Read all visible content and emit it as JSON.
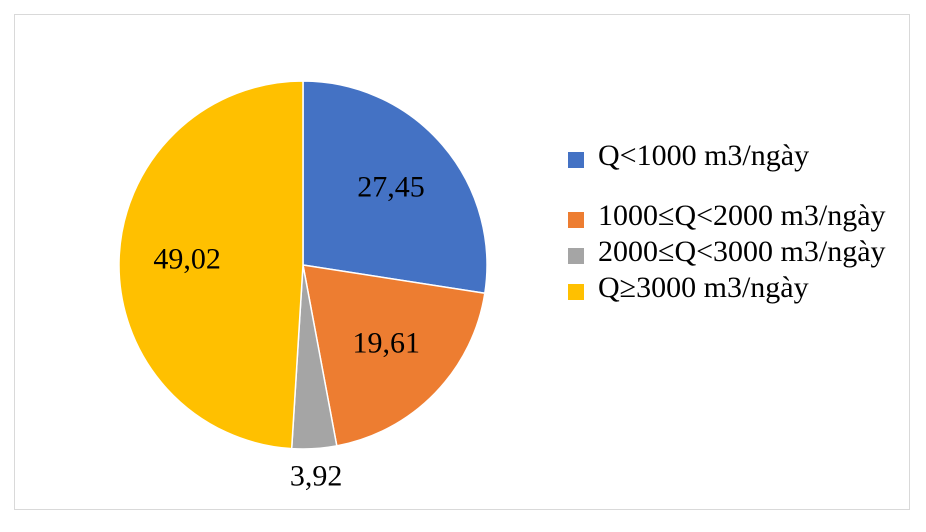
{
  "chart_data": {
    "type": "pie",
    "categories": [
      "Q<1000 m3/ngày",
      "1000≤Q<2000 m3/ngày",
      "2000≤Q<3000 m3/ngày",
      "Q≥3000 m3/ngày"
    ],
    "values": [
      27.45,
      19.61,
      3.92,
      49.02
    ],
    "data_labels": [
      "27,45",
      "19,61",
      "3,92",
      "49,02"
    ],
    "colors": [
      "#4472C4",
      "#ED7D31",
      "#A5A5A5",
      "#FFC000"
    ],
    "legend_position": "right",
    "title": ""
  }
}
